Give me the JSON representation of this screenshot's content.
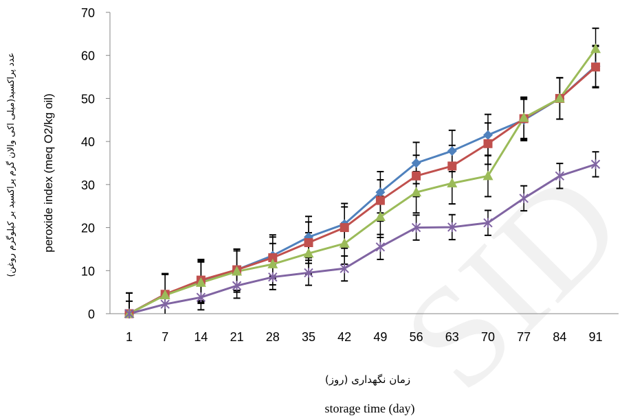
{
  "chart_data": {
    "type": "line",
    "categories": [
      "1",
      "7",
      "14",
      "21",
      "28",
      "35",
      "42",
      "49",
      "56",
      "63",
      "70",
      "77",
      "84",
      "91"
    ],
    "ylim": [
      0,
      70
    ],
    "yticks": [
      0,
      10,
      20,
      30,
      40,
      50,
      60,
      70
    ],
    "grid": false,
    "legend": "none",
    "xlabel_fa": "زمان نگهداری (روز)",
    "xlabel_en": "storage time (day)",
    "ylabel_en": "peroxide index (meq O2/kg oil)",
    "ylabel_fa": "عدد پراکسید(میلی اکی والان گرم پراکسید بر کیلوگرم روغن)",
    "watermark": "SID",
    "series": [
      {
        "marker": "diamond",
        "color": "#4f81bd",
        "values": [
          0,
          4.5,
          7.5,
          10.2,
          13.5,
          17.8,
          20.8,
          28.2,
          35,
          37.8,
          41.5,
          45,
          50,
          57.5
        ],
        "errors": [
          4.8,
          4.8,
          4.8,
          4.8,
          4.8,
          4.8,
          4.8,
          4.8,
          4.8,
          4.8,
          4.8,
          4.8,
          4.8,
          4.8
        ]
      },
      {
        "marker": "square",
        "color": "#c0504d",
        "values": [
          0,
          4.5,
          7.8,
          10.2,
          13,
          16.5,
          20,
          26.3,
          32,
          34.3,
          39.5,
          45.3,
          50,
          57.3
        ],
        "errors": [
          4.8,
          4.8,
          4.8,
          4.8,
          4.8,
          4.8,
          4.8,
          4.8,
          4.8,
          4.8,
          4.8,
          4.8,
          4.8,
          4.8
        ]
      },
      {
        "marker": "triangle",
        "color": "#9bbb59",
        "values": [
          0,
          4.3,
          7.2,
          9.8,
          11.5,
          14,
          16.3,
          22.5,
          28.2,
          30.3,
          32,
          45.5,
          50,
          61.5
        ],
        "errors": [
          4.8,
          4.8,
          4.8,
          4.8,
          4.8,
          4.8,
          4.8,
          4.8,
          4.8,
          4.8,
          4.8,
          4.8,
          4.8,
          4.8
        ]
      },
      {
        "marker": "x",
        "color": "#8064a2",
        "values": [
          0,
          2.2,
          3.8,
          6.5,
          8.5,
          9.5,
          10.5,
          15.5,
          20,
          20.1,
          21.1,
          26.8,
          32,
          34.7
        ],
        "errors": [
          2.9,
          2.9,
          2.9,
          2.9,
          2.9,
          2.9,
          2.9,
          2.9,
          2.9,
          2.9,
          2.9,
          2.9,
          2.9,
          2.9
        ]
      }
    ]
  }
}
